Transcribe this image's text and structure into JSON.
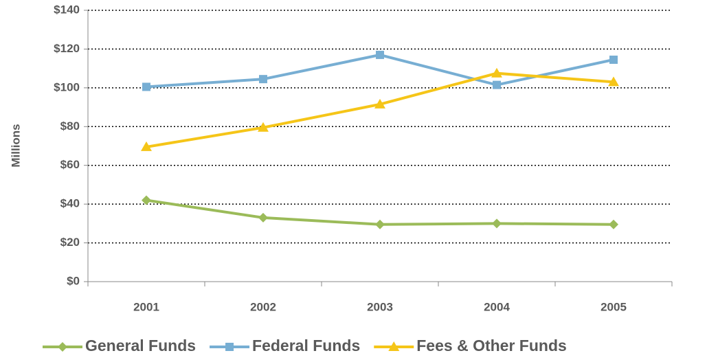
{
  "chart_data": {
    "type": "line",
    "y_label": "Millions",
    "categories": [
      "2001",
      "2002",
      "2003",
      "2004",
      "2005"
    ],
    "series": [
      {
        "name": "General Funds",
        "color": "#9bbb59",
        "marker": "diamond",
        "values": [
          42,
          33,
          29.5,
          30,
          29.5
        ]
      },
      {
        "name": "Federal Funds",
        "color": "#77aed3",
        "marker": "square",
        "values": [
          100.5,
          104.5,
          117,
          101.5,
          114.5
        ]
      },
      {
        "name": "Fees & Other Funds",
        "color": "#f5c518",
        "marker": "triangle",
        "values": [
          69.5,
          79.5,
          91.5,
          107.5,
          103
        ]
      }
    ],
    "ylim": [
      0,
      140
    ],
    "yticks": [
      {
        "value": 0,
        "label": "$0"
      },
      {
        "value": 20,
        "label": "$20"
      },
      {
        "value": 40,
        "label": "$40"
      },
      {
        "value": 60,
        "label": "$60"
      },
      {
        "value": 80,
        "label": "$80"
      },
      {
        "value": 100,
        "label": "$100"
      },
      {
        "value": 120,
        "label": "$120"
      },
      {
        "value": 140,
        "label": "$140"
      }
    ],
    "grid": true,
    "legend": "bottom"
  }
}
